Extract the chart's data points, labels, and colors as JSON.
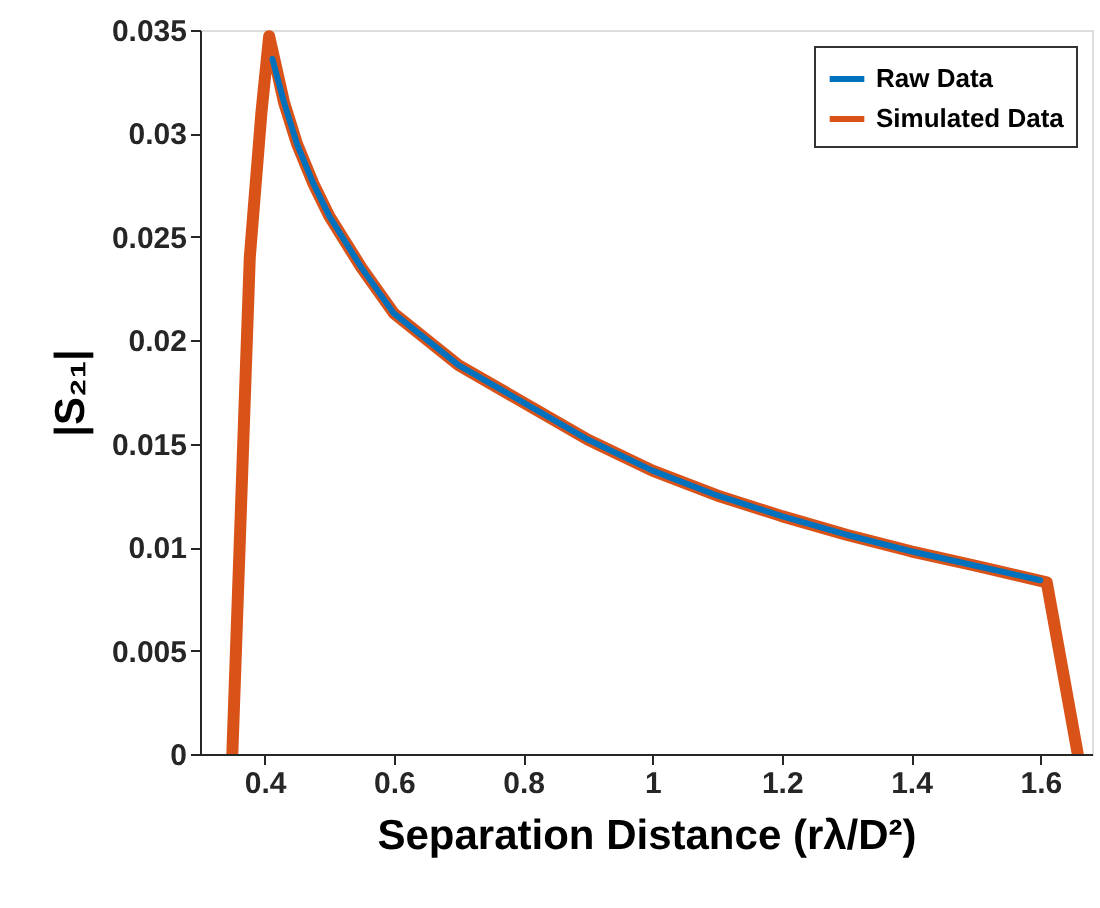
{
  "chart_data": {
    "type": "line",
    "xlabel": "Separation Distance (rλ/D²)",
    "ylabel": "|S₂₁|",
    "xlim": [
      0.3,
      1.68
    ],
    "xticks": [
      0.4,
      0.6,
      0.8,
      1,
      1.2,
      1.4,
      1.6
    ],
    "ylim": [
      0,
      0.035
    ],
    "yticks": [
      0,
      0.005,
      0.01,
      0.015,
      0.02,
      0.025,
      0.03,
      0.035
    ],
    "grid": false,
    "legend": "top right",
    "line_style": "solid",
    "marker": "none",
    "series": [
      {
        "name": "Raw Data",
        "color": "#0072bd",
        "x": [
          0.412,
          0.43,
          0.45,
          0.475,
          0.5,
          0.55,
          0.6,
          0.7,
          0.8,
          0.9,
          1.0,
          1.1,
          1.2,
          1.3,
          1.4,
          1.5,
          1.6
        ],
        "values": [
          0.0336,
          0.0315,
          0.0295,
          0.0276,
          0.026,
          0.0235,
          0.0213,
          0.0188,
          0.017,
          0.0152,
          0.0137,
          0.0125,
          0.0115,
          0.0106,
          0.0098,
          0.0091,
          0.0084
        ]
      },
      {
        "name": "Simulated Data",
        "color": "#d95319",
        "x": [
          0.35,
          0.377,
          0.395,
          0.407,
          0.43,
          0.45,
          0.475,
          0.5,
          0.55,
          0.6,
          0.7,
          0.8,
          0.9,
          1.0,
          1.1,
          1.2,
          1.3,
          1.4,
          1.5,
          1.61,
          1.658
        ],
        "values": [
          0,
          0.024,
          0.031,
          0.0347,
          0.0315,
          0.0295,
          0.0276,
          0.026,
          0.0235,
          0.0213,
          0.0188,
          0.017,
          0.0152,
          0.0137,
          0.0125,
          0.0115,
          0.0106,
          0.0098,
          0.0091,
          0.0083,
          0
        ]
      }
    ]
  }
}
